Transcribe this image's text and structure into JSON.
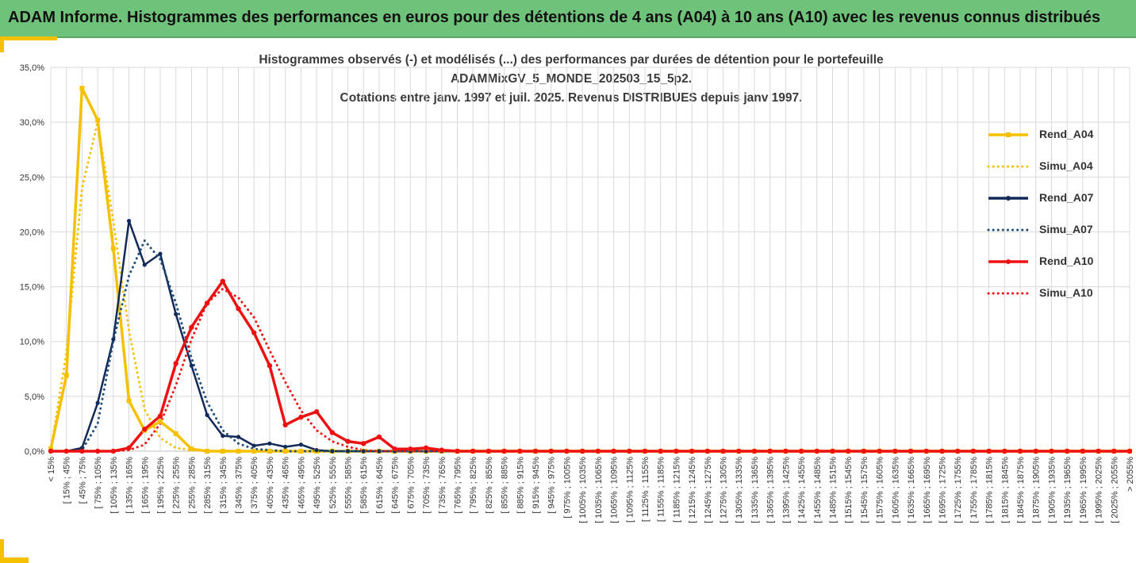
{
  "header": {
    "title": "ADAM Informe. Histogrammes des performances en euros pour des détentions de 4 ans (A04) à 10 ans (A10) avec les revenus connus distribués"
  },
  "chart_data": {
    "type": "line",
    "title_lines": [
      "Histogrammes observés (-) et modélisés (...) des performances par durées de détention pour le portefeuille",
      "ADAMMixGV_5_MONDE_202503_15_5p2.",
      "Cotations entre janv. 1997 et juil. 2025. Revenus DISTRIBUES depuis janv 1997."
    ],
    "categories": [
      "< 15%",
      "[ 15% ; 45%",
      "[ 45% ; 75%",
      "[ 75% ; 105%",
      "[ 105% ; 135%",
      "[ 135% ; 165%",
      "[ 165% ; 195%",
      "[ 195% ; 225%",
      "[ 225% ; 255%",
      "[ 255% ; 285%",
      "[ 285% ; 315%",
      "[ 315% ; 345%",
      "[ 345% ; 375%",
      "[ 375% ; 405%",
      "[ 405% ; 435%",
      "[ 435% ; 465%",
      "[ 465% ; 495%",
      "[ 495% ; 525%",
      "[ 525% ; 555%",
      "[ 555% ; 585%",
      "[ 585% ; 615%",
      "[ 615% ; 645%",
      "[ 645% ; 675%",
      "[ 675% ; 705%",
      "[ 705% ; 735%",
      "[ 735% ; 765%",
      "[ 765% ; 795%",
      "[ 795% ; 825%",
      "[ 825% ; 855%",
      "[ 855% ; 885%",
      "[ 885% ; 915%",
      "[ 915% ; 945%",
      "[ 945% ; 975%",
      "[ 975% ; 1005%",
      "[ 1005% ; 1035%",
      "[ 1035% ; 1065%",
      "[ 1065% ; 1095%",
      "[ 1095% ; 1125%",
      "[ 1125% ; 1155%",
      "[ 1155% ; 1185%",
      "[ 1185% ; 1215%",
      "[ 1215% ; 1245%",
      "[ 1245% ; 1275%",
      "[ 1275% ; 1305%",
      "[ 1305% ; 1335%",
      "[ 1335% ; 1365%",
      "[ 1365% ; 1395%",
      "[ 1395% ; 1425%",
      "[ 1425% ; 1455%",
      "[ 1455% ; 1485%",
      "[ 1485% ; 1515%",
      "[ 1515% ; 1545%",
      "[ 1545% ; 1575%",
      "[ 1575% ; 1605%",
      "[ 1605% ; 1635%",
      "[ 1635% ; 1665%",
      "[ 1665% ; 1695%",
      "[ 1695% ; 1725%",
      "[ 1725% ; 1755%",
      "[ 1755% ; 1785%",
      "[ 1785% ; 1815%",
      "[ 1815% ; 1845%",
      "[ 1845% ; 1875%",
      "[ 1875% ; 1905%",
      "[ 1905% ; 1935%",
      "[ 1935% ; 1965%",
      "[ 1965% ; 1995%",
      "[ 1995% ; 2025%",
      "[ 2025% ; 2055%",
      "> 2055%"
    ],
    "yticks": [
      "0,0%",
      "5,0%",
      "10,0%",
      "15,0%",
      "20,0%",
      "25,0%",
      "30,0%",
      "35,0%"
    ],
    "ylim": [
      0,
      35
    ],
    "grid": true,
    "legend_position": "right",
    "series": [
      {
        "name": "Rend_A04",
        "style": "solid",
        "color": "#f5c000",
        "values": [
          0.2,
          6.9,
          33.1,
          30.2,
          18.5,
          4.6,
          1.9,
          2.7,
          1.6,
          0.2,
          0,
          0,
          0,
          0,
          0,
          0,
          0,
          0,
          0,
          0,
          0,
          0,
          0,
          0,
          0,
          0,
          0,
          0,
          0,
          0,
          0,
          0,
          0,
          0,
          0,
          0,
          0,
          0,
          0,
          0,
          0,
          0,
          0,
          0,
          0,
          0,
          0,
          0,
          0,
          0,
          0,
          0,
          0,
          0,
          0,
          0,
          0,
          0,
          0,
          0,
          0,
          0,
          0,
          0,
          0,
          0,
          0,
          0,
          0,
          0
        ]
      },
      {
        "name": "Simu_A04",
        "style": "dotted",
        "color": "#f5c000",
        "values": [
          0.1,
          9.0,
          24.0,
          30.0,
          21.0,
          11.0,
          3.8,
          1.2,
          0.3,
          0.1,
          0,
          0,
          0,
          0,
          0,
          0,
          0,
          0,
          0,
          0,
          0,
          0,
          0,
          0,
          0,
          0,
          0,
          0,
          0,
          0,
          0,
          0,
          0,
          0,
          0,
          0,
          0,
          0,
          0,
          0,
          0,
          0,
          0,
          0,
          0,
          0,
          0,
          0,
          0,
          0,
          0,
          0,
          0,
          0,
          0,
          0,
          0,
          0,
          0,
          0,
          0,
          0,
          0,
          0,
          0,
          0,
          0,
          0,
          0,
          0
        ]
      },
      {
        "name": "Rend_A07",
        "style": "solid",
        "color": "#12295a",
        "values": [
          0,
          0,
          0.3,
          4.4,
          10.2,
          21.0,
          17.0,
          18.0,
          12.5,
          7.8,
          3.3,
          1.4,
          1.3,
          0.5,
          0.7,
          0.4,
          0.6,
          0.1,
          0,
          0,
          0,
          0,
          0,
          0,
          0,
          0,
          0,
          0,
          0,
          0,
          0,
          0,
          0,
          0,
          0,
          0,
          0,
          0,
          0,
          0,
          0,
          0,
          0,
          0,
          0,
          0,
          0,
          0,
          0,
          0,
          0,
          0,
          0,
          0,
          0,
          0,
          0,
          0,
          0,
          0,
          0,
          0,
          0,
          0,
          0,
          0,
          0,
          0,
          0,
          0
        ]
      },
      {
        "name": "Simu_A07",
        "style": "dotted",
        "color": "#1f4e79",
        "values": [
          0,
          0,
          0.1,
          2.5,
          10.0,
          16.0,
          19.2,
          17.5,
          13.5,
          8.5,
          4.5,
          1.9,
          0.7,
          0.2,
          0.1,
          0,
          0,
          0,
          0,
          0,
          0,
          0,
          0,
          0,
          0,
          0,
          0,
          0,
          0,
          0,
          0,
          0,
          0,
          0,
          0,
          0,
          0,
          0,
          0,
          0,
          0,
          0,
          0,
          0,
          0,
          0,
          0,
          0,
          0,
          0,
          0,
          0,
          0,
          0,
          0,
          0,
          0,
          0,
          0,
          0,
          0,
          0,
          0,
          0,
          0,
          0,
          0,
          0,
          0,
          0
        ]
      },
      {
        "name": "Rend_A10",
        "style": "solid",
        "color": "#ee1111",
        "values": [
          0,
          0,
          0,
          0,
          0,
          0.3,
          2.0,
          3.2,
          8.0,
          11.3,
          13.5,
          15.5,
          13.0,
          10.8,
          7.8,
          2.4,
          3.1,
          3.6,
          1.7,
          0.9,
          0.7,
          1.3,
          0.2,
          0.2,
          0.3,
          0.1,
          0,
          0,
          0,
          0,
          0,
          0,
          0,
          0,
          0,
          0,
          0,
          0,
          0,
          0,
          0,
          0,
          0,
          0,
          0,
          0,
          0,
          0,
          0,
          0,
          0,
          0,
          0,
          0,
          0,
          0,
          0,
          0,
          0,
          0,
          0,
          0,
          0,
          0,
          0,
          0,
          0,
          0,
          0,
          0
        ]
      },
      {
        "name": "Simu_A10",
        "style": "dotted",
        "color": "#ee1111",
        "values": [
          0,
          0,
          0,
          0,
          0,
          0.1,
          0.6,
          2.5,
          6.0,
          10.2,
          13.5,
          14.8,
          14.0,
          12.2,
          9.2,
          6.3,
          3.7,
          1.9,
          0.9,
          0.4,
          0.1,
          0,
          0,
          0,
          0,
          0,
          0,
          0,
          0,
          0,
          0,
          0,
          0,
          0,
          0,
          0,
          0,
          0,
          0,
          0,
          0,
          0,
          0,
          0,
          0,
          0,
          0,
          0,
          0,
          0,
          0,
          0,
          0,
          0,
          0,
          0,
          0,
          0,
          0,
          0,
          0,
          0,
          0,
          0,
          0,
          0,
          0,
          0,
          0,
          0
        ]
      }
    ]
  }
}
